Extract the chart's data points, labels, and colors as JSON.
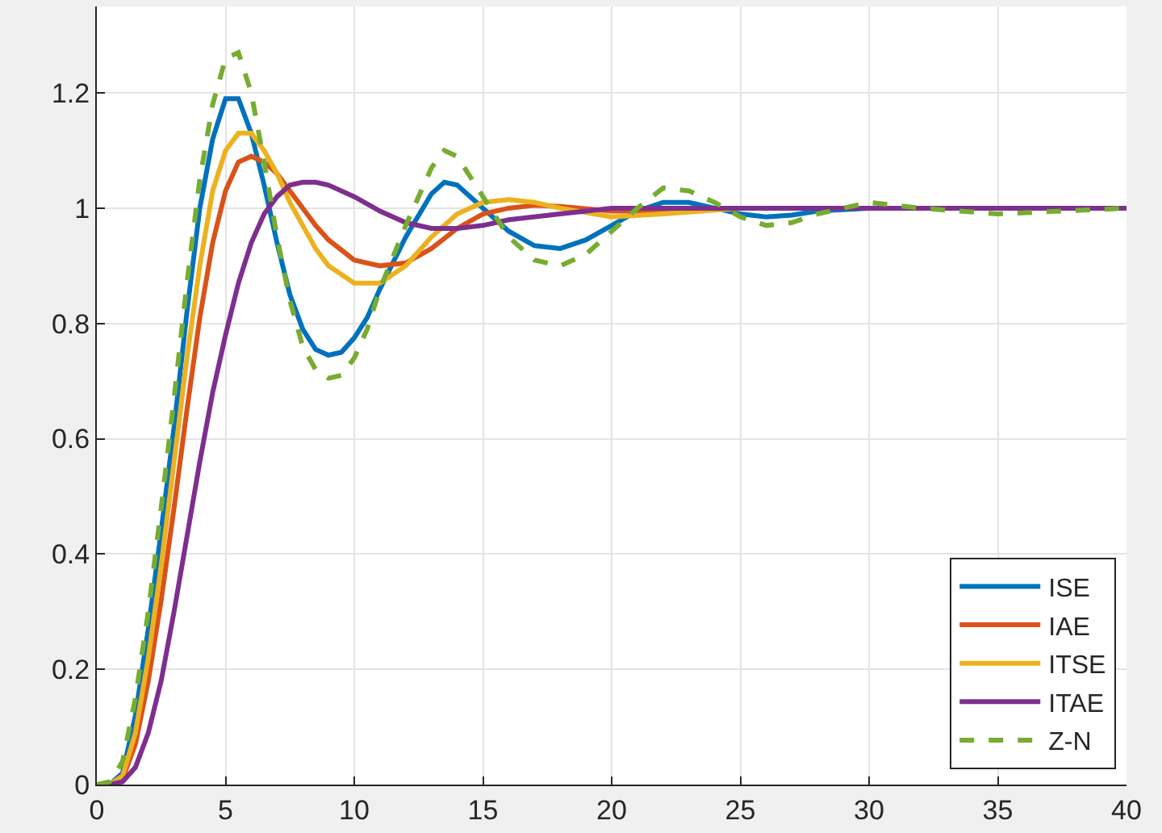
{
  "chart_data": {
    "type": "line",
    "xlim": [
      0,
      40
    ],
    "ylim": [
      0,
      1.35
    ],
    "xticks": [
      0,
      5,
      10,
      15,
      20,
      25,
      30,
      35,
      40
    ],
    "yticks": [
      0,
      0.2,
      0.4,
      0.6,
      0.8,
      1,
      1.2
    ],
    "grid": true,
    "legend": "bottom right",
    "marker": "none",
    "series": [
      {
        "name": "ISE",
        "color": "#0072bd",
        "line_style": "solid",
        "x": [
          0,
          0.5,
          1,
          1.5,
          2,
          2.5,
          3,
          3.5,
          4,
          4.5,
          5,
          5.5,
          6,
          6.5,
          7,
          7.5,
          8,
          8.5,
          9,
          9.5,
          10,
          10.5,
          11,
          12,
          13,
          13.5,
          14,
          15,
          16,
          17,
          18,
          19,
          20,
          21,
          22,
          23,
          24,
          25,
          26,
          27,
          28,
          30,
          32
        ],
        "values": [
          0,
          0,
          0.02,
          0.12,
          0.27,
          0.44,
          0.62,
          0.82,
          1.0,
          1.12,
          1.19,
          1.19,
          1.13,
          1.04,
          0.94,
          0.85,
          0.79,
          0.755,
          0.745,
          0.75,
          0.775,
          0.81,
          0.86,
          0.95,
          1.025,
          1.045,
          1.04,
          1.0,
          0.96,
          0.935,
          0.93,
          0.945,
          0.97,
          0.995,
          1.01,
          1.01,
          1.0,
          0.99,
          0.985,
          0.988,
          0.995,
          1.0,
          1.0
        ]
      },
      {
        "name": "IAE",
        "color": "#d95319",
        "line_style": "solid",
        "x": [
          0,
          0.5,
          1,
          1.5,
          2,
          2.5,
          3,
          3.5,
          4,
          4.5,
          5,
          5.5,
          6,
          6.5,
          7,
          7.5,
          8,
          8.5,
          9,
          10,
          11,
          12,
          13,
          14,
          15,
          16,
          17,
          18,
          20,
          22,
          25
        ],
        "values": [
          0,
          0,
          0.01,
          0.07,
          0.18,
          0.32,
          0.48,
          0.65,
          0.81,
          0.94,
          1.03,
          1.08,
          1.09,
          1.08,
          1.06,
          1.03,
          1.0,
          0.97,
          0.945,
          0.91,
          0.9,
          0.905,
          0.93,
          0.965,
          0.99,
          1.0,
          1.005,
          1.003,
          0.995,
          0.995,
          1.0
        ]
      },
      {
        "name": "ITSE",
        "color": "#edb120",
        "line_style": "solid",
        "x": [
          0,
          0.5,
          1,
          1.5,
          2,
          2.5,
          3,
          3.5,
          4,
          4.5,
          5,
          5.5,
          6,
          6.5,
          7,
          7.5,
          8,
          8.5,
          9,
          10,
          11,
          12,
          13,
          14,
          15,
          16,
          17,
          18,
          20,
          22,
          25,
          30
        ],
        "values": [
          0,
          0,
          0.015,
          0.09,
          0.22,
          0.38,
          0.56,
          0.74,
          0.9,
          1.03,
          1.1,
          1.13,
          1.13,
          1.1,
          1.06,
          1.01,
          0.97,
          0.93,
          0.9,
          0.87,
          0.87,
          0.9,
          0.95,
          0.99,
          1.01,
          1.015,
          1.01,
          1.0,
          0.985,
          0.99,
          1.0,
          1.0
        ]
      },
      {
        "name": "ITAE",
        "color": "#7e2f8e",
        "line_style": "solid",
        "x": [
          0,
          0.5,
          1,
          1.5,
          2,
          2.5,
          3,
          3.5,
          4,
          4.5,
          5,
          5.5,
          6,
          6.5,
          7,
          7.5,
          8,
          8.5,
          9,
          10,
          11,
          12,
          13,
          14,
          15,
          16,
          18,
          20,
          25,
          30,
          40
        ],
        "values": [
          0,
          0,
          0.005,
          0.03,
          0.09,
          0.18,
          0.3,
          0.43,
          0.56,
          0.68,
          0.78,
          0.87,
          0.94,
          0.99,
          1.02,
          1.04,
          1.045,
          1.045,
          1.04,
          1.02,
          0.995,
          0.975,
          0.965,
          0.965,
          0.97,
          0.98,
          0.99,
          1.0,
          1.0,
          1.0,
          1.0
        ]
      },
      {
        "name": "Z-N",
        "color": "#77ac30",
        "line_style": "dashed",
        "x": [
          0,
          0.5,
          1,
          1.5,
          2,
          2.5,
          3,
          3.5,
          4,
          4.5,
          5,
          5.5,
          6,
          6.5,
          7,
          7.5,
          8,
          8.5,
          9,
          9.5,
          10,
          10.5,
          11,
          12,
          13,
          13.5,
          14,
          15,
          16,
          17,
          18,
          19,
          20,
          21,
          22,
          23,
          24,
          25,
          26,
          27,
          28,
          30,
          32,
          35,
          40
        ],
        "values": [
          0,
          0.005,
          0.04,
          0.15,
          0.3,
          0.48,
          0.67,
          0.87,
          1.05,
          1.18,
          1.26,
          1.27,
          1.2,
          1.08,
          0.95,
          0.84,
          0.76,
          0.72,
          0.705,
          0.71,
          0.74,
          0.79,
          0.86,
          0.97,
          1.07,
          1.1,
          1.09,
          1.02,
          0.95,
          0.91,
          0.9,
          0.92,
          0.96,
          1.0,
          1.035,
          1.03,
          1.01,
          0.985,
          0.97,
          0.975,
          0.99,
          1.01,
          1.0,
          0.99,
          1.0
        ]
      }
    ]
  }
}
